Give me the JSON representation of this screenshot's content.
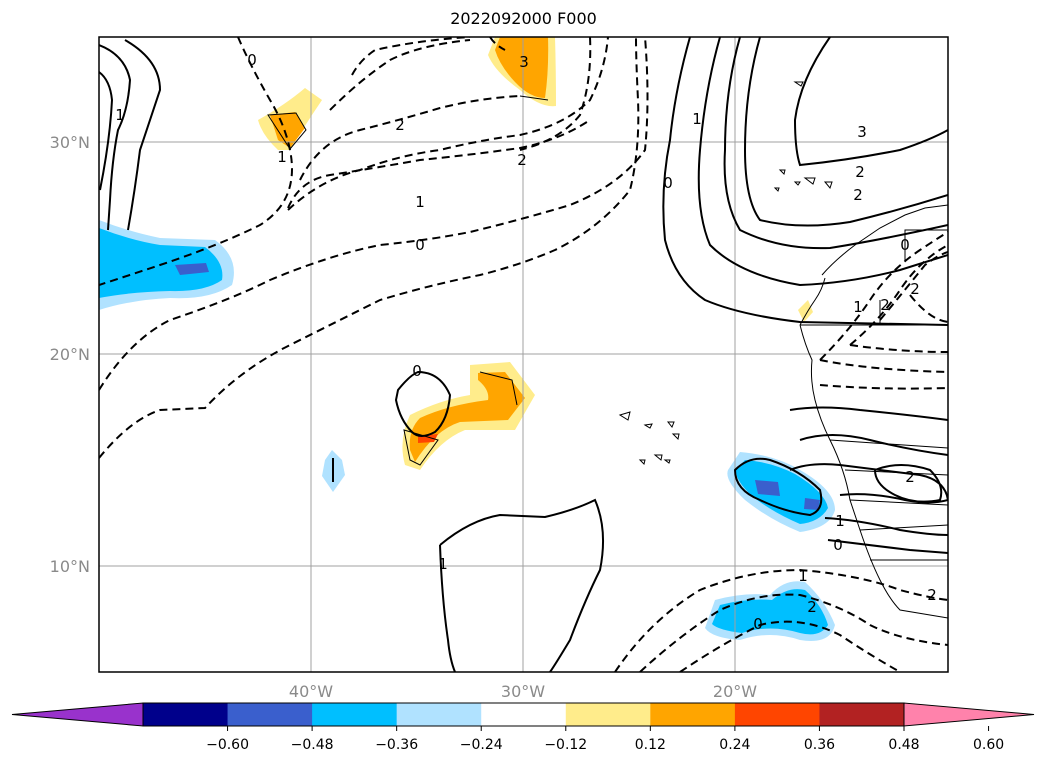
{
  "title": "2022092000 F000",
  "map": {
    "lat_ticks": [
      "30°N",
      "20°N",
      "10°N"
    ],
    "lon_ticks": [
      "40°W",
      "30°W",
      "20°W"
    ],
    "extent": {
      "lon": [
        -50,
        -10
      ],
      "lat": [
        5,
        35
      ]
    },
    "gridlines": true
  },
  "colorbar": {
    "ticks": [
      "−0.60",
      "−0.48",
      "−0.36",
      "−0.24",
      "−0.12",
      "0.12",
      "0.24",
      "0.36",
      "0.48",
      "0.60"
    ],
    "colors": [
      "#9932cc",
      "#00008b",
      "#3a5fcd",
      "#00bfff",
      "#b0e2ff",
      "#ffffff",
      "#ffec8b",
      "#ffa500",
      "#ff4500",
      "#b22222",
      "#ff82ab"
    ],
    "extend": "both"
  },
  "contour_labels": [
    "0",
    "1",
    "1",
    "2",
    "3",
    "2",
    "1",
    "0",
    "1",
    "3",
    "2",
    "2",
    "0",
    "1",
    "2",
    "0",
    "0",
    "1",
    "1",
    "2",
    "2",
    "0",
    "1",
    "0",
    "2",
    "2"
  ]
}
